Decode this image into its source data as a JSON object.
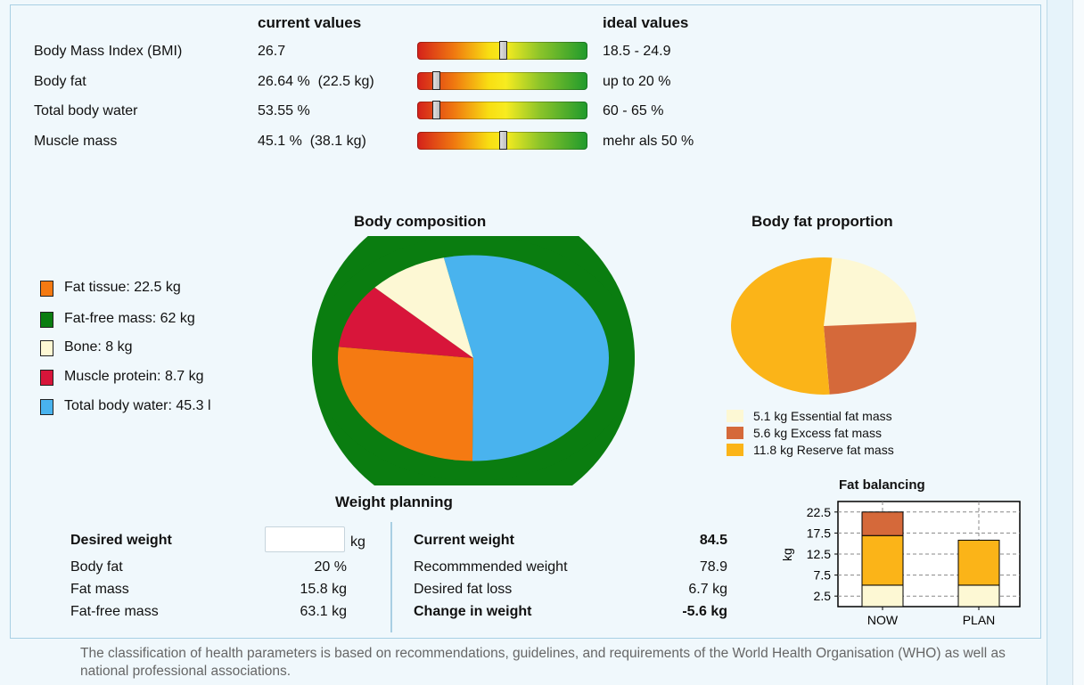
{
  "headers": {
    "current": "current values",
    "ideal": "ideal values"
  },
  "metrics": [
    {
      "label": "Body Mass Index (BMI)",
      "current": "26.7",
      "ideal": "18.5 - 24.9",
      "level": 0.5
    },
    {
      "label": "Body fat",
      "current": "26.64 %  (22.5 kg)",
      "ideal": "up to 20 %",
      "level": 0.11
    },
    {
      "label": "Total body water",
      "current": "53.55 %",
      "ideal": "60 - 65 %",
      "level": 0.11
    },
    {
      "label": "Muscle mass",
      "current": "45.1 %  (38.1 kg)",
      "ideal": "mehr als 50 %",
      "level": 0.5
    }
  ],
  "body_composition": {
    "title": "Body composition",
    "legend": [
      {
        "label": "Fat tissue: 22.5 kg",
        "color": "#f57a12"
      },
      {
        "label": "Fat-free mass: 62 kg",
        "color": "#0a7d10"
      },
      {
        "label": "Bone: 8 kg",
        "color": "#fdf8d4"
      },
      {
        "label": "Muscle protein: 8.7 kg",
        "color": "#d8153a"
      },
      {
        "label": "Total body water: 45.3 l",
        "color": "#49b3ee"
      }
    ]
  },
  "body_fat_proportion": {
    "title": "Body fat proportion",
    "legend": [
      {
        "label": "5.1 kg Essential fat mass",
        "color": "#fdf8d4"
      },
      {
        "label": "5.6 kg Excess fat mass",
        "color": "#d5693a"
      },
      {
        "label": "11.8 kg Reserve fat mass",
        "color": "#fbb418"
      }
    ]
  },
  "weight_planning": {
    "title": "Weight planning",
    "desired_weight_label": "Desired weight",
    "desired_weight_value": "",
    "unit": "kg",
    "left_rows": [
      {
        "label": "Body fat",
        "value": "20 %"
      },
      {
        "label": "Fat mass",
        "value": "15.8 kg"
      },
      {
        "label": "Fat-free mass",
        "value": "63.1 kg"
      }
    ],
    "right_rows": [
      {
        "label": "Current weight",
        "value": "84.5",
        "bold": true
      },
      {
        "label": "Recommmended weight",
        "value": "78.9",
        "bold": false
      },
      {
        "label": "Desired fat loss",
        "value": "6.7 kg",
        "bold": false
      },
      {
        "label": "Change in weight",
        "value": "-5.6 kg",
        "bold": true
      }
    ]
  },
  "fat_balancing": {
    "title": "Fat balancing",
    "ylabel": "kg",
    "yticks": [
      "22.5",
      "17.5",
      "12.5",
      "7.5",
      "2.5"
    ],
    "categories": [
      "NOW",
      "PLAN"
    ]
  },
  "footer": "The classification of health parameters is based on recommendations, guidelines, and requirements of the World Health Organisation  (WHO)   as well as national professional associations.",
  "chart_data": [
    {
      "type": "pie",
      "title": "Body composition",
      "series": [
        {
          "name": "Fat-free mass",
          "values": [
            62
          ],
          "labels": [
            "Fat-free mass: 62 kg"
          ]
        },
        {
          "name": "Fat tissue",
          "values": [
            22.5
          ]
        }
      ],
      "segments": [
        {
          "label": "Total body water",
          "value": 45.3,
          "unit": "l",
          "color": "#49b3ee"
        },
        {
          "label": "Fat tissue",
          "value": 22.5,
          "unit": "kg",
          "color": "#f57a12"
        },
        {
          "label": "Muscle protein",
          "value": 8.7,
          "unit": "kg",
          "color": "#d8153a"
        },
        {
          "label": "Bone",
          "value": 8,
          "unit": "kg",
          "color": "#fdf8d4"
        }
      ],
      "outer_ring": {
        "label": "Fat-free mass",
        "value": 62,
        "color": "#0a7d10"
      }
    },
    {
      "type": "pie",
      "title": "Body fat proportion",
      "segments": [
        {
          "label": "Essential fat mass",
          "value": 5.1,
          "color": "#fdf8d4"
        },
        {
          "label": "Excess fat mass",
          "value": 5.6,
          "color": "#d5693a"
        },
        {
          "label": "Reserve fat mass",
          "value": 11.8,
          "color": "#fbb418"
        }
      ]
    },
    {
      "type": "bar",
      "title": "Fat balancing",
      "ylabel": "kg",
      "categories": [
        "NOW",
        "PLAN"
      ],
      "ylim": [
        0,
        25
      ],
      "stacked": true,
      "series": [
        {
          "name": "Essential fat mass",
          "values": [
            5.1,
            5.1
          ],
          "color": "#fdf8d4"
        },
        {
          "name": "Reserve fat mass",
          "values": [
            11.8,
            10.7
          ],
          "color": "#fbb418"
        },
        {
          "name": "Excess fat mass",
          "values": [
            5.6,
            0
          ],
          "color": "#d5693a"
        }
      ]
    }
  ]
}
